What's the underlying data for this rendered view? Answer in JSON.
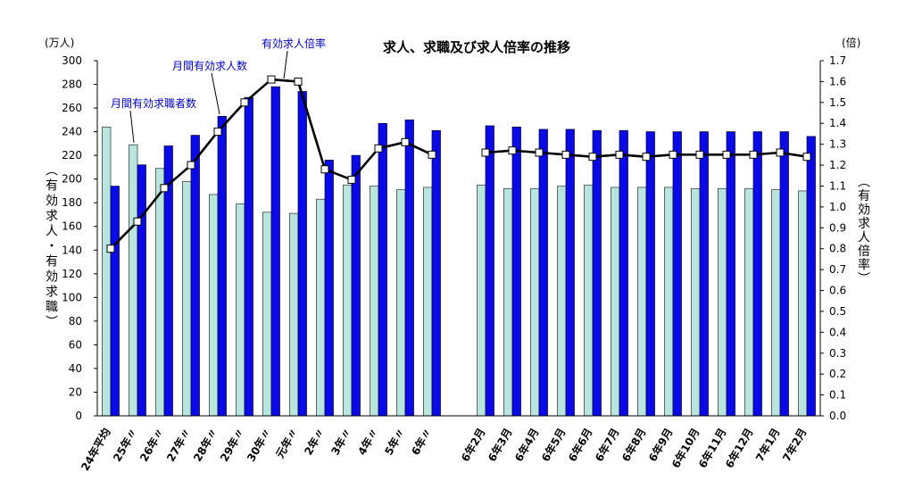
{
  "chart_data": {
    "type": "bar",
    "title": "求人、求職及び求人倍率の推移",
    "y_left_unit": "(万人)",
    "y_right_unit": "(倍)",
    "ylabel_left": "（有効求人・有効求職）",
    "ylabel_right": "（有効求人倍率）",
    "ylim_left": [
      0,
      300
    ],
    "ylim_right": [
      0,
      1.7
    ],
    "y_left_ticks": [
      0,
      20,
      40,
      60,
      80,
      100,
      120,
      140,
      160,
      180,
      200,
      220,
      240,
      260,
      280,
      300
    ],
    "y_right_ticks": [
      "0.0",
      "0.1",
      "0.2",
      "0.3",
      "0.4",
      "0.5",
      "0.6",
      "0.7",
      "0.8",
      "0.9",
      "1.0",
      "1.1",
      "1.2",
      "1.3",
      "1.4",
      "1.5",
      "1.6",
      "1.7"
    ],
    "grid": false,
    "categories": [
      "24年平均",
      "25年〃",
      "26年〃",
      "27年〃",
      "28年〃",
      "29年〃",
      "30年〃",
      "元年〃",
      "2年〃",
      "3年〃",
      "4年〃",
      "5年〃",
      "6年〃",
      "6年2月",
      "6年3月",
      "6年4月",
      "6年5月",
      "6年6月",
      "6年7月",
      "6年8月",
      "6年9月",
      "6年10月",
      "6年11月",
      "6年12月",
      "7年1月",
      "7年2月"
    ],
    "series": [
      {
        "name": "月間有効求職者数",
        "type": "bar",
        "axis": "left",
        "color": "#b9e5df",
        "values": [
          244,
          229,
          209,
          198,
          187,
          179,
          172,
          171,
          183,
          195,
          194,
          191,
          193,
          195,
          192,
          192,
          194,
          195,
          193,
          193,
          193,
          192,
          192,
          192,
          191,
          190
        ]
      },
      {
        "name": "月間有効求人数",
        "type": "bar",
        "axis": "left",
        "color": "#0a0ae8",
        "values": [
          194,
          212,
          228,
          237,
          253,
          269,
          278,
          274,
          216,
          220,
          247,
          250,
          241,
          245,
          244,
          242,
          242,
          241,
          241,
          240,
          240,
          240,
          240,
          240,
          240,
          236
        ]
      },
      {
        "name": "有効求人倍率",
        "type": "line",
        "axis": "right",
        "color": "#000000",
        "values": [
          0.8,
          0.93,
          1.09,
          1.2,
          1.36,
          1.5,
          1.61,
          1.6,
          1.18,
          1.13,
          1.28,
          1.31,
          1.25,
          1.26,
          1.27,
          1.26,
          1.25,
          1.24,
          1.25,
          1.24,
          1.25,
          1.25,
          1.25,
          1.25,
          1.26,
          1.24
        ]
      }
    ]
  }
}
